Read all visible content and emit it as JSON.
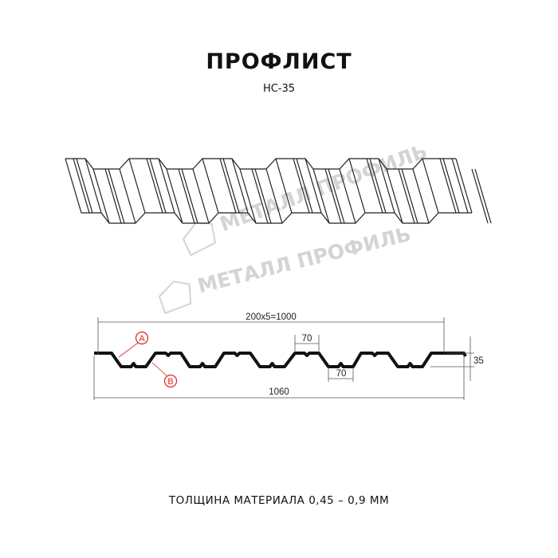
{
  "title": "ПРОФЛИСТ",
  "subtitle": "НС-35",
  "watermark": "МЕТАЛЛ ПРОФИЛЬ",
  "dimensions": {
    "pitch": "200x5=1000",
    "top_flat": "70",
    "bottom_flat": "70",
    "height": "35",
    "total_width": "1060"
  },
  "callouts": [
    "A",
    "B"
  ],
  "colors": {
    "callout": "#e0211f",
    "watermark": "#d4d4d4",
    "line": "#111111"
  },
  "footer": "ТОЛЩИНА МАТЕРИАЛА 0,45 – 0,9 ММ"
}
